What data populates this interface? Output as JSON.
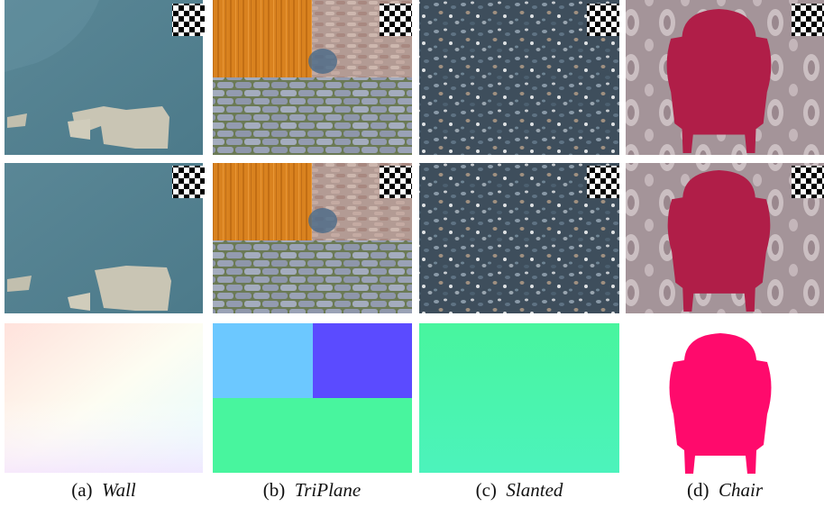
{
  "panels": [
    {
      "label": "(a)",
      "name": "Wall"
    },
    {
      "label": "(b)",
      "name": "TriPlane"
    },
    {
      "label": "(c)",
      "name": "Slanted"
    },
    {
      "label": "(d)",
      "name": "Chair"
    }
  ]
}
